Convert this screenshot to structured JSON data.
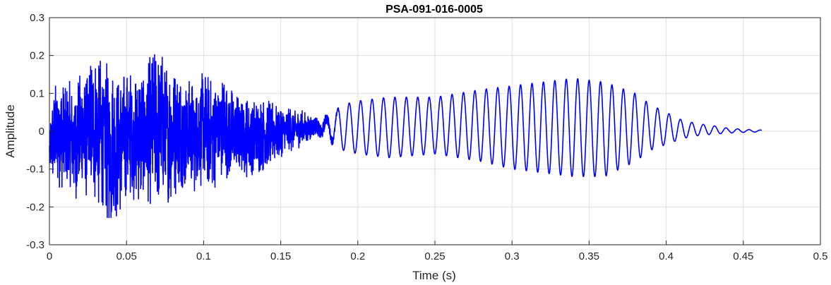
{
  "chart_data": {
    "type": "line",
    "title": "PSA-091-016-0005",
    "xlabel": "Time (s)",
    "ylabel": "Amplitude",
    "xlim": [
      0,
      0.5
    ],
    "ylim": [
      -0.3,
      0.3
    ],
    "x_ticks": [
      "0",
      "0.05",
      "0.1",
      "0.15",
      "0.2",
      "0.25",
      "0.3",
      "0.35",
      "0.4",
      "0.45",
      "0.5"
    ],
    "y_ticks": [
      "0.3",
      "0.2",
      "0.1",
      "0",
      "-0.1",
      "-0.2",
      "-0.3"
    ],
    "grid": true,
    "series": [
      {
        "color": "#0000ff",
        "x_range": [
          0,
          0.462
        ],
        "envelope": {
          "t": [
            0,
            0.005,
            0.01,
            0.02,
            0.03,
            0.04,
            0.05,
            0.06,
            0.07,
            0.08,
            0.09,
            0.1,
            0.11,
            0.115,
            0.12,
            0.13,
            0.14,
            0.15,
            0.16,
            0.17,
            0.18,
            0.19,
            0.2,
            0.22,
            0.25,
            0.28,
            0.3,
            0.32,
            0.34,
            0.36,
            0.38,
            0.39,
            0.4,
            0.41,
            0.42,
            0.43,
            0.44,
            0.45,
            0.462
          ],
          "max": [
            0.05,
            0.16,
            0.12,
            0.16,
            0.21,
            0.17,
            0.17,
            0.17,
            0.23,
            0.17,
            0.15,
            0.17,
            0.14,
            0.16,
            0.1,
            0.09,
            0.1,
            0.07,
            0.06,
            0.05,
            0.06,
            0.07,
            0.08,
            0.09,
            0.09,
            0.11,
            0.12,
            0.13,
            0.14,
            0.13,
            0.1,
            0.07,
            0.05,
            0.03,
            0.02,
            0.015,
            0.008,
            0.005,
            0.003
          ],
          "min": [
            -0.15,
            -0.15,
            -0.18,
            -0.18,
            -0.2,
            -0.27,
            -0.19,
            -0.19,
            -0.2,
            -0.19,
            -0.17,
            -0.16,
            -0.15,
            -0.14,
            -0.13,
            -0.12,
            -0.11,
            -0.07,
            -0.05,
            -0.03,
            -0.04,
            -0.05,
            -0.06,
            -0.07,
            -0.06,
            -0.08,
            -0.1,
            -0.11,
            -0.12,
            -0.12,
            -0.08,
            -0.05,
            -0.035,
            -0.02,
            -0.012,
            -0.008,
            -0.005,
            -0.003,
            -0.002
          ]
        }
      }
    ]
  }
}
